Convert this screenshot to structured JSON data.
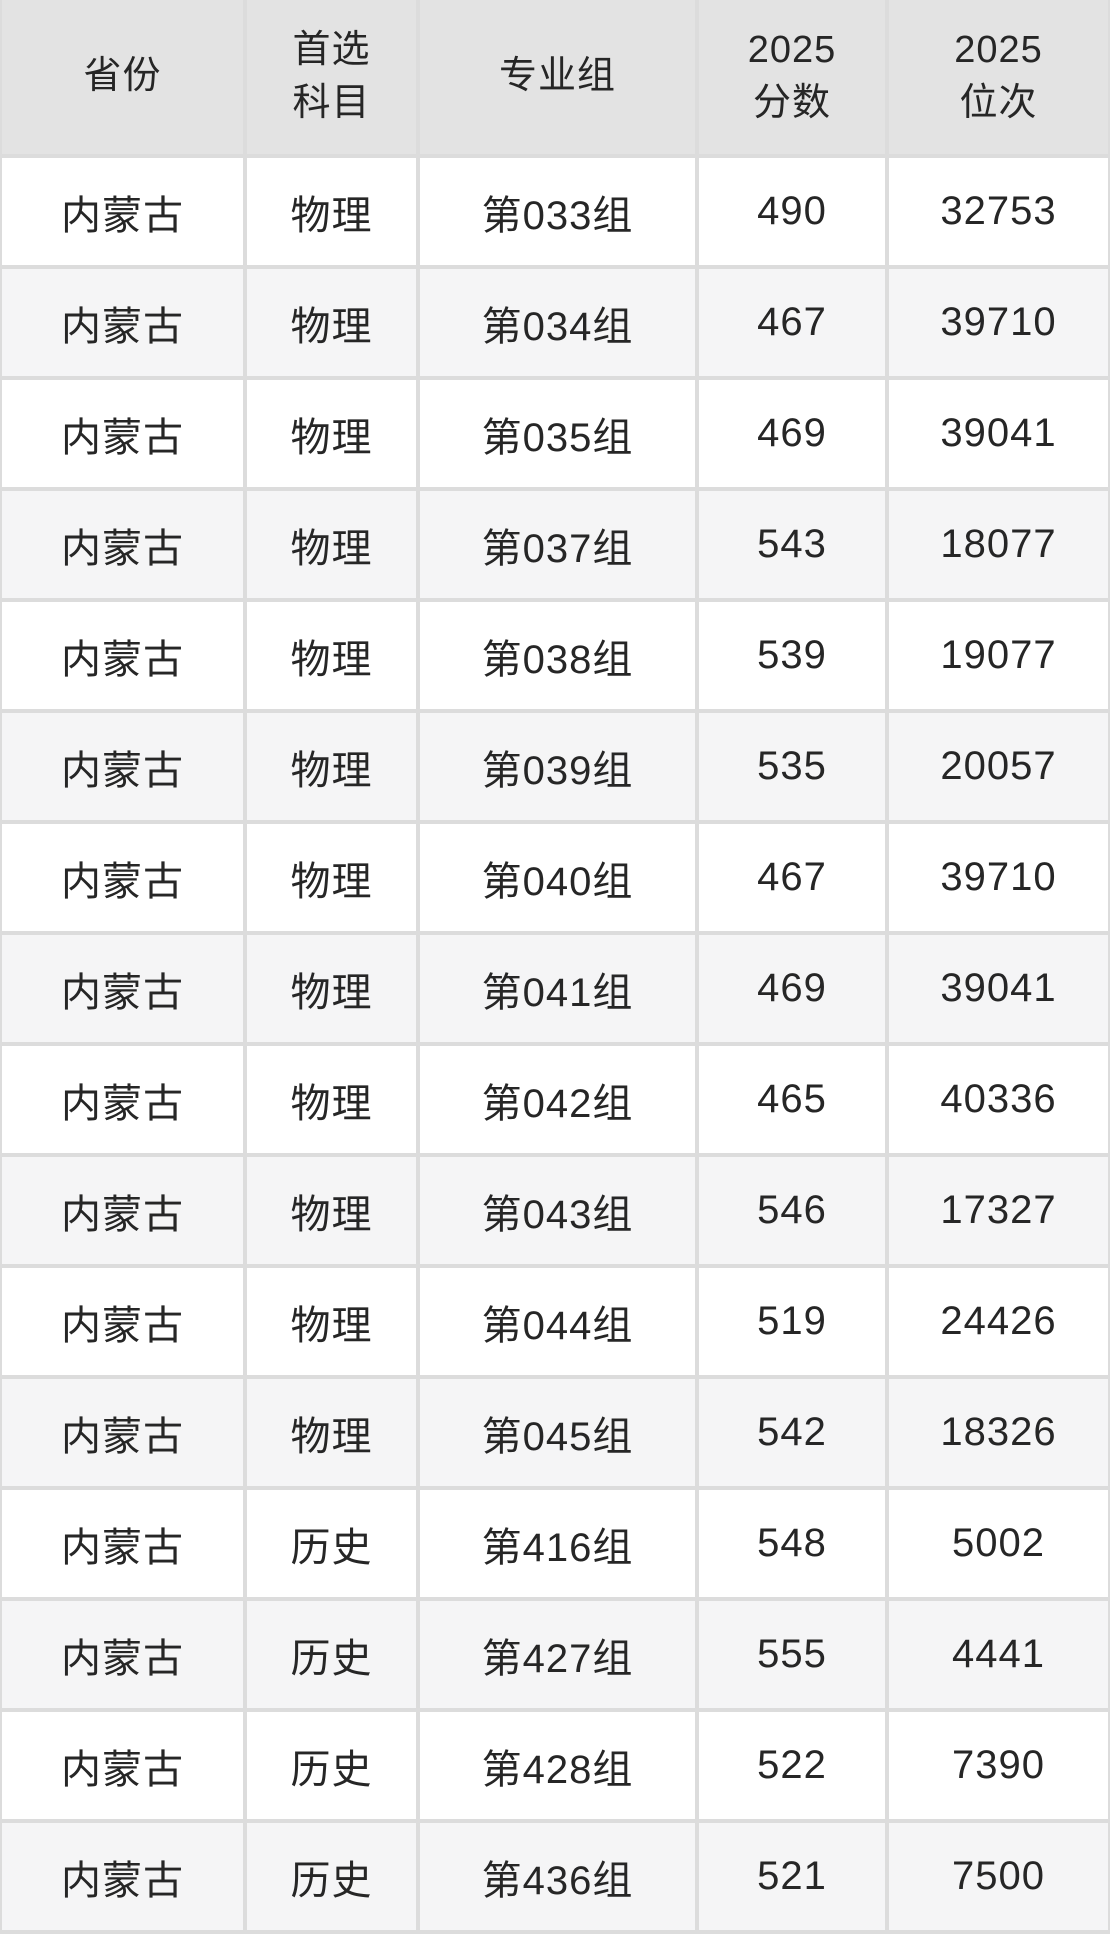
{
  "colors": {
    "header_bg": "#e3e3e3",
    "row_odd_bg": "#ffffff",
    "row_even_bg": "#f5f5f6",
    "grid": "#dcdcdc",
    "text": "#262626"
  },
  "chart_data": {
    "type": "table",
    "title": "",
    "columns": [
      {
        "id": "province",
        "label": "省份"
      },
      {
        "id": "subject",
        "label": "首选\n科目"
      },
      {
        "id": "group",
        "label": "专业组"
      },
      {
        "id": "score",
        "label": "2025\n分数"
      },
      {
        "id": "rank",
        "label": "2025\n位次"
      }
    ],
    "rows": [
      {
        "province": "内蒙古",
        "subject": "物理",
        "group": "第033组",
        "score": "490",
        "rank": "32753"
      },
      {
        "province": "内蒙古",
        "subject": "物理",
        "group": "第034组",
        "score": "467",
        "rank": "39710"
      },
      {
        "province": "内蒙古",
        "subject": "物理",
        "group": "第035组",
        "score": "469",
        "rank": "39041"
      },
      {
        "province": "内蒙古",
        "subject": "物理",
        "group": "第037组",
        "score": "543",
        "rank": "18077"
      },
      {
        "province": "内蒙古",
        "subject": "物理",
        "group": "第038组",
        "score": "539",
        "rank": "19077"
      },
      {
        "province": "内蒙古",
        "subject": "物理",
        "group": "第039组",
        "score": "535",
        "rank": "20057"
      },
      {
        "province": "内蒙古",
        "subject": "物理",
        "group": "第040组",
        "score": "467",
        "rank": "39710"
      },
      {
        "province": "内蒙古",
        "subject": "物理",
        "group": "第041组",
        "score": "469",
        "rank": "39041"
      },
      {
        "province": "内蒙古",
        "subject": "物理",
        "group": "第042组",
        "score": "465",
        "rank": "40336"
      },
      {
        "province": "内蒙古",
        "subject": "物理",
        "group": "第043组",
        "score": "546",
        "rank": "17327"
      },
      {
        "province": "内蒙古",
        "subject": "物理",
        "group": "第044组",
        "score": "519",
        "rank": "24426"
      },
      {
        "province": "内蒙古",
        "subject": "物理",
        "group": "第045组",
        "score": "542",
        "rank": "18326"
      },
      {
        "province": "内蒙古",
        "subject": "历史",
        "group": "第416组",
        "score": "548",
        "rank": "5002"
      },
      {
        "province": "内蒙古",
        "subject": "历史",
        "group": "第427组",
        "score": "555",
        "rank": "4441"
      },
      {
        "province": "内蒙古",
        "subject": "历史",
        "group": "第428组",
        "score": "522",
        "rank": "7390"
      },
      {
        "province": "内蒙古",
        "subject": "历史",
        "group": "第436组",
        "score": "521",
        "rank": "7500"
      }
    ]
  }
}
